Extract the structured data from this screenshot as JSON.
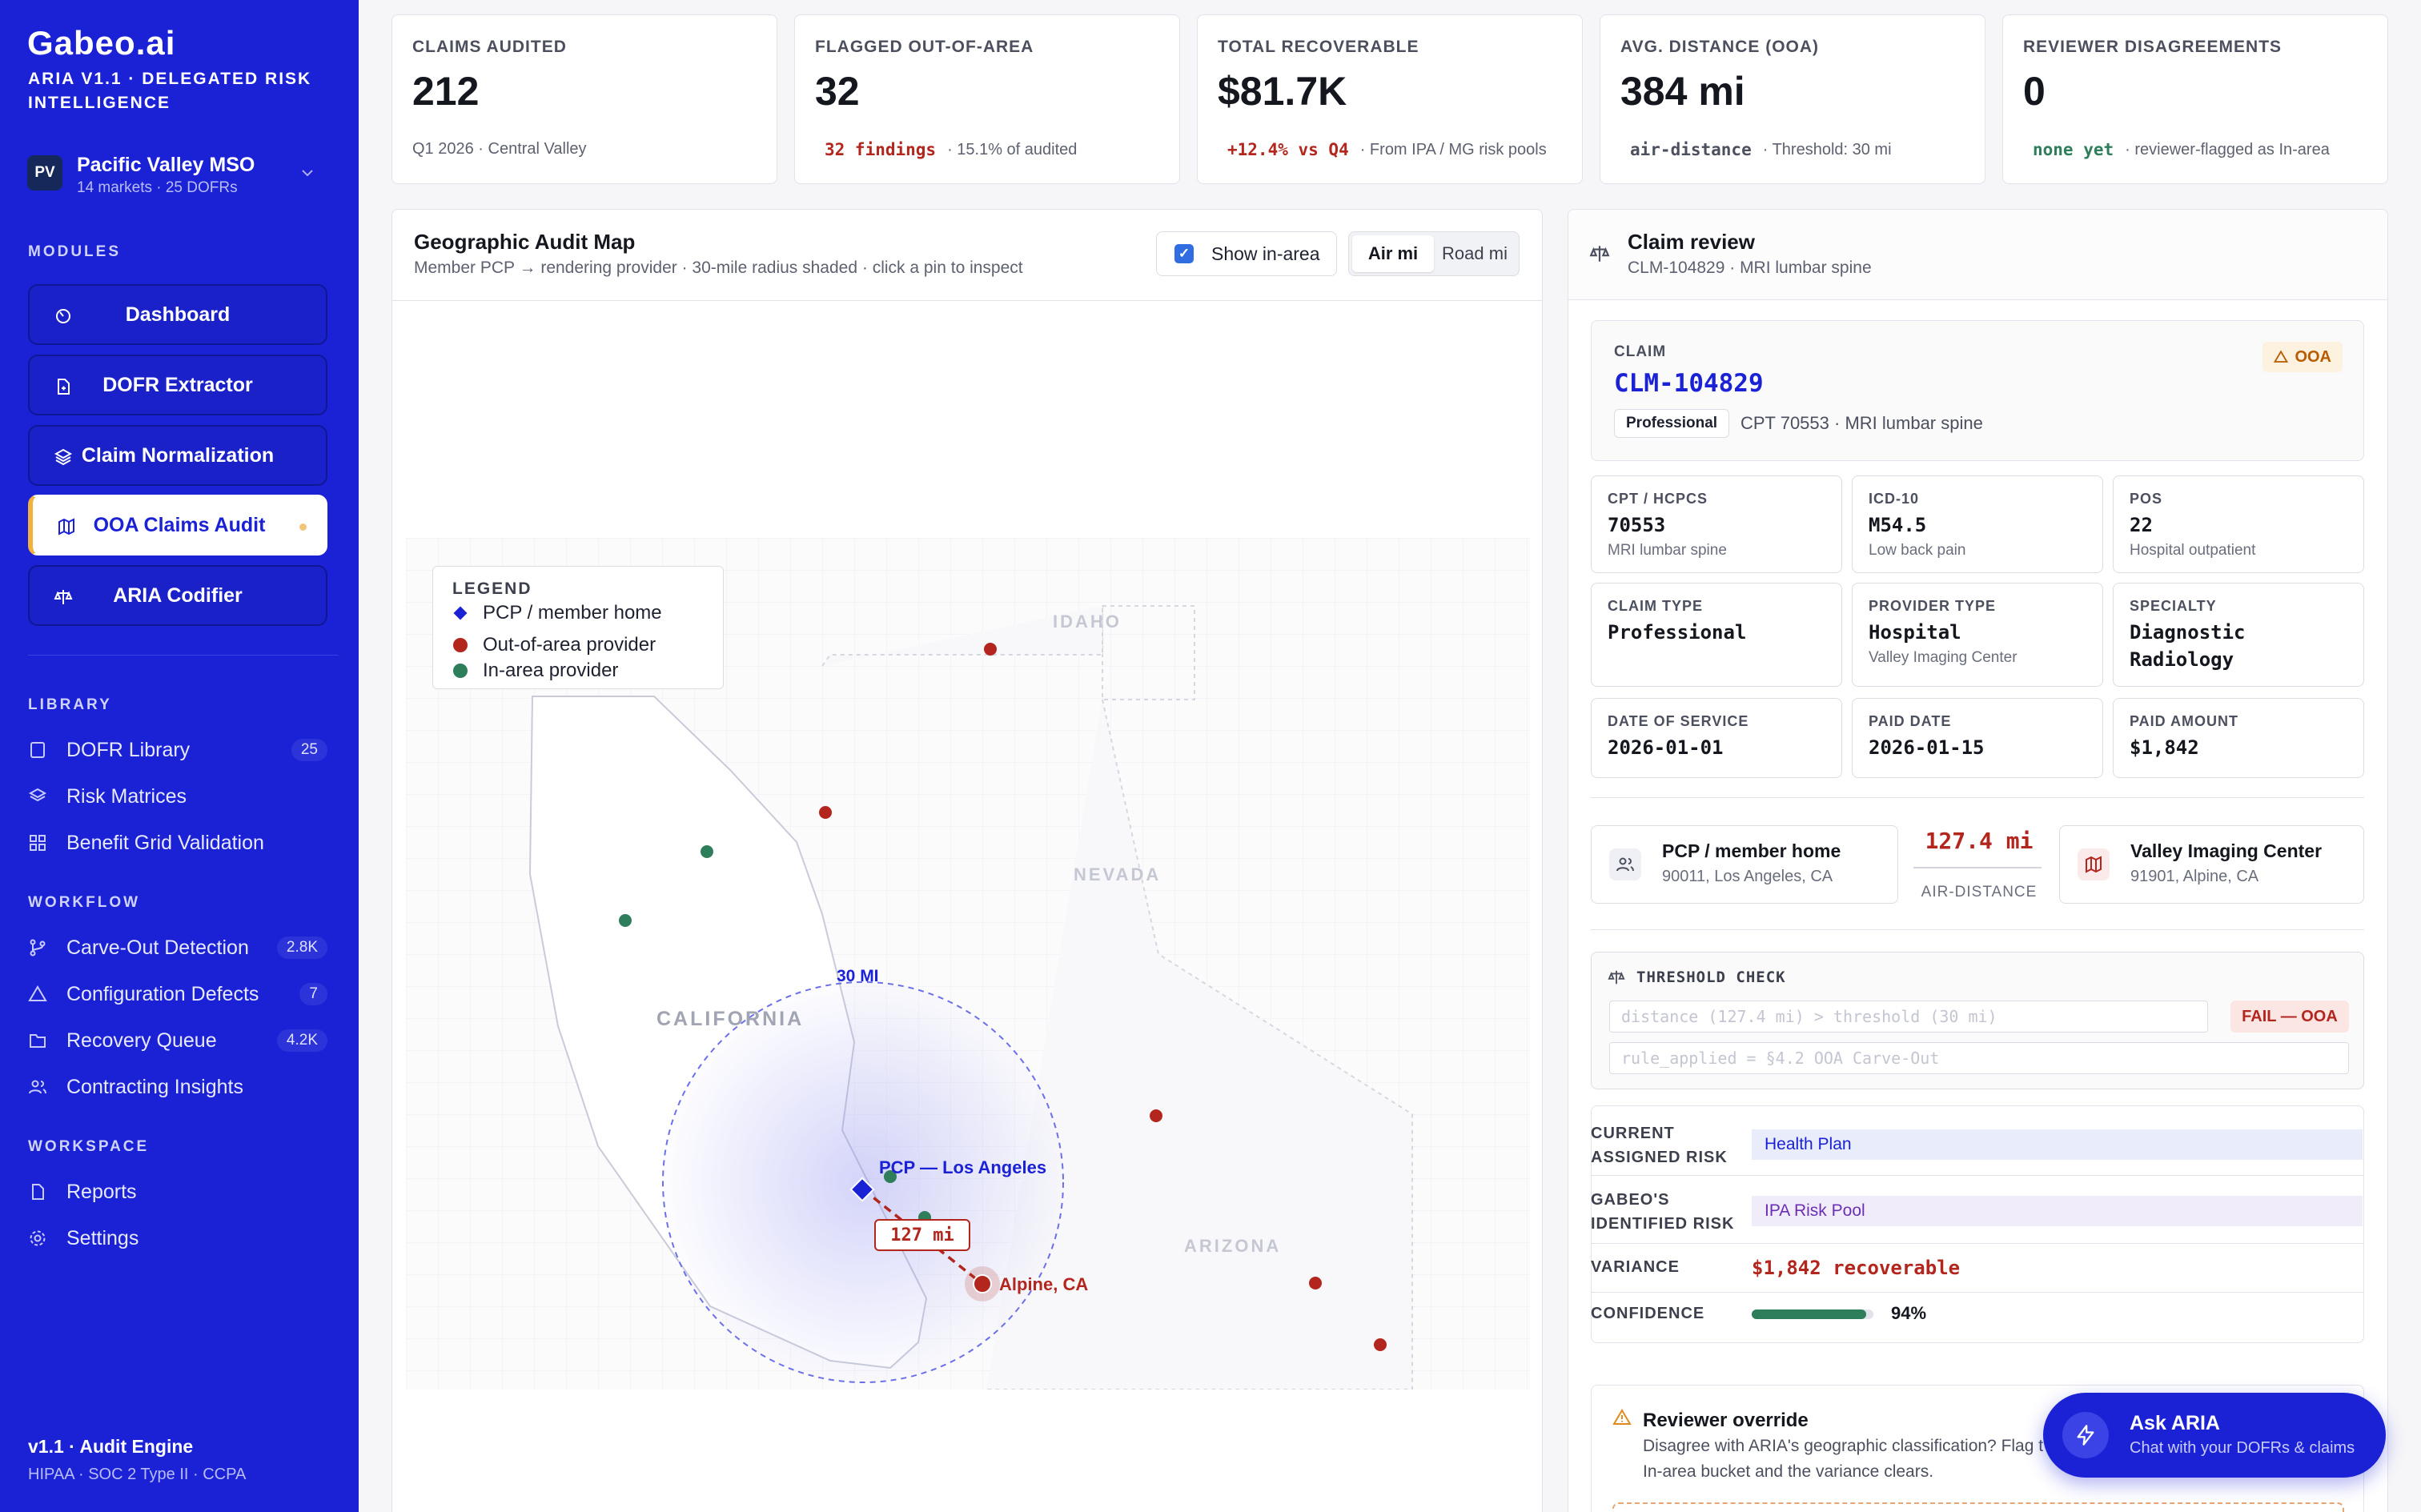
{
  "brand": {
    "logo": "Gabeo.ai",
    "subtitle": "ARIA V1.1 · DELEGATED RISK INTELLIGENCE"
  },
  "org": {
    "initials": "PV",
    "name": "Pacific Valley MSO",
    "meta": "14 markets · 25 DOFRs"
  },
  "sections": {
    "modules": "MODULES",
    "library": "LIBRARY",
    "workflow": "WORKFLOW",
    "workspace": "WORKSPACE"
  },
  "modules": [
    {
      "label": "Dashboard",
      "icon": "dashboard-icon"
    },
    {
      "label": "DOFR Extractor",
      "icon": "document-icon"
    },
    {
      "label": "Claim Normalization",
      "icon": "layers-icon"
    },
    {
      "label": "OOA Claims Audit",
      "icon": "map-icon",
      "active": true
    },
    {
      "label": "ARIA Codifier",
      "icon": "scale-icon"
    }
  ],
  "library": [
    {
      "label": "DOFR Library",
      "count": "25"
    },
    {
      "label": "Risk Matrices",
      "count": ""
    },
    {
      "label": "Benefit Grid Validation",
      "count": ""
    }
  ],
  "workflow": [
    {
      "label": "Carve-Out Detection",
      "count": "2.8K"
    },
    {
      "label": "Configuration Defects",
      "count": "7"
    },
    {
      "label": "Recovery Queue",
      "count": "4.2K"
    },
    {
      "label": "Contracting Insights",
      "count": ""
    }
  ],
  "workspace": [
    {
      "label": "Reports"
    },
    {
      "label": "Settings"
    }
  ],
  "footer": {
    "version": "v1.1 · Audit Engine",
    "compliance": "HIPAA · SOC 2 Type II · CCPA"
  },
  "stats": [
    {
      "label": "CLAIMS AUDITED",
      "value": "212",
      "tag": "",
      "note": "Q1 2026 · Central Valley"
    },
    {
      "label": "FLAGGED OUT-OF-AREA",
      "value": "32",
      "tag": "32 findings",
      "note": "· 15.1% of audited"
    },
    {
      "label": "TOTAL RECOVERABLE",
      "value": "$81.7K",
      "tag": "+12.4% vs Q4",
      "note": "· From IPA / MG risk pools"
    },
    {
      "label": "AVG. DISTANCE (OOA)",
      "value": "384 mi",
      "tag": "air-distance",
      "note": "· Threshold: 30 mi"
    },
    {
      "label": "REVIEWER DISAGREEMENTS",
      "value": "0",
      "tag": "none yet",
      "note": "· reviewer-flagged as In-area"
    }
  ],
  "colors": {
    "accent": "#1b22d6",
    "ooa_red": "#b3261e",
    "in_area_green": "#2e7d5b",
    "warning": "#f2b13d"
  },
  "map": {
    "title": "Geographic Audit Map",
    "subtitle": "Member PCP → rendering provider · 30-mile radius shaded · click a pin to inspect",
    "show_in_area": "Show in-area",
    "mode_air": "Air mi",
    "mode_road": "Road mi",
    "legend": {
      "title": "LEGEND",
      "pcp": "PCP / member home",
      "ooa": "Out-of-area provider",
      "in_area": "In-area provider"
    },
    "states": {
      "idaho": "IDAHO",
      "nevada": "NEVADA",
      "california": "CALIFORNIA",
      "arizona": "ARIZONA"
    },
    "radius_label": "30 MI",
    "pcp_label": "PCP — Los Angeles",
    "provider_label": "Alpine, CA",
    "distance_label": "127 mi"
  },
  "claim": {
    "panel_title": "Claim review",
    "panel_sub": "CLM-104829 · MRI lumbar spine",
    "claim_label": "CLAIM",
    "claim_id": "CLM-104829",
    "ooa_badge": "OOA",
    "type_badge": "Professional",
    "summary": "CPT 70553 · MRI lumbar spine",
    "fields": [
      {
        "key": "CPT / HCPCS",
        "value": "70553",
        "desc": "MRI lumbar spine"
      },
      {
        "key": "ICD-10",
        "value": "M54.5",
        "desc": "Low back pain"
      },
      {
        "key": "POS",
        "value": "22",
        "desc": "Hospital outpatient"
      },
      {
        "key": "CLAIM TYPE",
        "value": "Professional",
        "desc": ""
      },
      {
        "key": "PROVIDER TYPE",
        "value": "Hospital",
        "desc": "Valley Imaging Center"
      },
      {
        "key": "SPECIALTY",
        "value": "Diagnostic Radiology",
        "desc": ""
      },
      {
        "key": "DATE OF SERVICE",
        "value": "2026-01-01",
        "desc": ""
      },
      {
        "key": "PAID DATE",
        "value": "2026-01-15",
        "desc": ""
      },
      {
        "key": "PAID AMOUNT",
        "value": "$1,842",
        "desc": ""
      }
    ],
    "origin": {
      "title": "PCP / member home",
      "sub": "90011, Los Angeles, CA"
    },
    "distance": {
      "value": "127.4 mi",
      "label": "AIR-DISTANCE"
    },
    "destination": {
      "title": "Valley Imaging Center",
      "sub": "91901, Alpine, CA"
    },
    "threshold": {
      "title": "THRESHOLD CHECK",
      "expr": "distance (127.4 mi) > threshold (30 mi)",
      "result": "FAIL — OOA",
      "rule": "rule_applied = §4.2 OOA Carve-Out"
    },
    "risk": {
      "current_label": "CURRENT ASSIGNED RISK",
      "current_value": "Health Plan",
      "identified_label": "GABEO'S IDENTIFIED RISK",
      "identified_value": "IPA Risk Pool",
      "variance_label": "VARIANCE",
      "variance_value": "$1,842 recoverable",
      "confidence_label": "CONFIDENCE",
      "confidence_text": "94%",
      "confidence": 0.94
    },
    "override": {
      "title": "Reviewer override",
      "text1": "Disagree with ARIA's geographic classification? Flag t",
      "text2": "In-area bucket and the variance clears."
    }
  },
  "ask": {
    "title": "Ask ARIA",
    "sub": "Chat with your DOFRs & claims"
  }
}
